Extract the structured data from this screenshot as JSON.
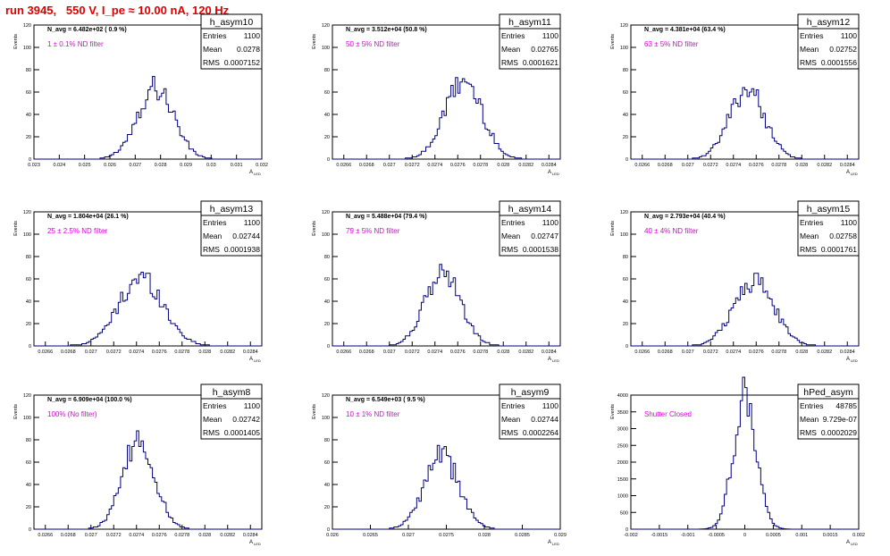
{
  "header": {
    "run_title": "run 3945,   550 V, I_pe ≈ 10.00 nA, 120 Hz"
  },
  "axis_labels": {
    "y": "Events",
    "x": "A",
    "x_sub": "LED"
  },
  "stats_labels": {
    "entries": "Entries",
    "mean": "Mean",
    "rms": "RMS"
  },
  "chart_data": [
    {
      "type": "bar",
      "hist_name": "h_asym10",
      "navg_text": "N_avg = 6.482e+02 ( 0.9 %)",
      "filter_text": "1 ± 0.1% ND filter",
      "entries": "1100",
      "mean": "0.0278",
      "rms": "0.0007152",
      "xlim": [
        0.023,
        0.032
      ],
      "ylim": [
        0,
        120
      ],
      "x_ticks": [
        "0.023",
        "0.024",
        "0.025",
        "0.026",
        "0.027",
        "0.028",
        "0.029",
        "0.03",
        "0.031",
        "0.032"
      ],
      "y_ticks": [
        "0",
        "20",
        "40",
        "60",
        "80",
        "100",
        "120"
      ],
      "mean_value": 0.0278,
      "rms_value": 0.0007152,
      "peak": 65
    },
    {
      "type": "bar",
      "hist_name": "h_asym11",
      "navg_text": "N_avg = 3.512e+04 (50.8 %)",
      "filter_text": "50 ± 5% ND filter",
      "entries": "1100",
      "mean": "0.02765",
      "rms": "0.0001621",
      "xlim": [
        0.0265,
        0.0285
      ],
      "ylim": [
        0,
        120
      ],
      "x_ticks": [
        "0.0266",
        "0.0268",
        "0.027",
        "0.0272",
        "0.0274",
        "0.0276",
        "0.0278",
        "0.028",
        "0.0282",
        "0.0284"
      ],
      "y_ticks": [
        "0",
        "20",
        "40",
        "60",
        "80",
        "100",
        "120"
      ],
      "mean_value": 0.02765,
      "rms_value": 0.0001621,
      "peak": 70
    },
    {
      "type": "bar",
      "hist_name": "h_asym12",
      "navg_text": "N_avg = 4.381e+04 (63.4 %)",
      "filter_text": "63 ± 5% ND filter",
      "entries": "1100",
      "mean": "0.02752",
      "rms": "0.0001556",
      "xlim": [
        0.0265,
        0.0285
      ],
      "ylim": [
        0,
        120
      ],
      "x_ticks": [
        "0.0266",
        "0.0268",
        "0.027",
        "0.0272",
        "0.0274",
        "0.0276",
        "0.0278",
        "0.028",
        "0.0282",
        "0.0284"
      ],
      "y_ticks": [
        "0",
        "20",
        "40",
        "60",
        "80",
        "100",
        "120"
      ],
      "mean_value": 0.02752,
      "rms_value": 0.0001556,
      "peak": 63
    },
    {
      "type": "bar",
      "hist_name": "h_asym13",
      "navg_text": "N_avg = 1.804e+04 (26.1 %)",
      "filter_text": "25 ± 2.5% ND filter",
      "entries": "1100",
      "mean": "0.02744",
      "rms": "0.0001938",
      "xlim": [
        0.0265,
        0.0285
      ],
      "ylim": [
        0,
        120
      ],
      "x_ticks": [
        "0.0266",
        "0.0268",
        "0.027",
        "0.0272",
        "0.0274",
        "0.0276",
        "0.0278",
        "0.028",
        "0.0282",
        "0.0284"
      ],
      "y_ticks": [
        "0",
        "20",
        "40",
        "60",
        "80",
        "100",
        "120"
      ],
      "mean_value": 0.02744,
      "rms_value": 0.0001938,
      "peak": 61
    },
    {
      "type": "bar",
      "hist_name": "h_asym14",
      "navg_text": "N_avg = 5.488e+04 (79.4 %)",
      "filter_text": "79 ± 5% ND filter",
      "entries": "1100",
      "mean": "0.02747",
      "rms": "0.0001538",
      "xlim": [
        0.0265,
        0.0285
      ],
      "ylim": [
        0,
        120
      ],
      "x_ticks": [
        "0.0266",
        "0.0268",
        "0.027",
        "0.0272",
        "0.0274",
        "0.0276",
        "0.0278",
        "0.028",
        "0.0282",
        "0.0284"
      ],
      "y_ticks": [
        "0",
        "20",
        "40",
        "60",
        "80",
        "100",
        "120"
      ],
      "mean_value": 0.02747,
      "rms_value": 0.0001538,
      "peak": 66
    },
    {
      "type": "bar",
      "hist_name": "h_asym15",
      "navg_text": "N_avg = 2.793e+04 (40.4 %)",
      "filter_text": "40 ± 4% ND filter",
      "entries": "1100",
      "mean": "0.02758",
      "rms": "0.0001761",
      "xlim": [
        0.0265,
        0.0285
      ],
      "ylim": [
        0,
        120
      ],
      "x_ticks": [
        "0.0266",
        "0.0268",
        "0.027",
        "0.0272",
        "0.0274",
        "0.0276",
        "0.0278",
        "0.028",
        "0.0282",
        "0.0284"
      ],
      "y_ticks": [
        "0",
        "20",
        "40",
        "60",
        "80",
        "100",
        "120"
      ],
      "mean_value": 0.02758,
      "rms_value": 0.0001761,
      "peak": 58
    },
    {
      "type": "bar",
      "hist_name": "h_asym8",
      "navg_text": "N_avg = 6.909e+04 (100.0 %)",
      "filter_text": "100% (No filter)",
      "entries": "1100",
      "mean": "0.02742",
      "rms": "0.0001405",
      "xlim": [
        0.0265,
        0.0285
      ],
      "ylim": [
        0,
        120
      ],
      "x_ticks": [
        "0.0266",
        "0.0268",
        "0.027",
        "0.0272",
        "0.0274",
        "0.0276",
        "0.0278",
        "0.028",
        "0.0282",
        "0.0284"
      ],
      "y_ticks": [
        "0",
        "20",
        "40",
        "60",
        "80",
        "100",
        "120"
      ],
      "mean_value": 0.02742,
      "rms_value": 0.0001405,
      "peak": 78
    },
    {
      "type": "bar",
      "hist_name": "h_asym9",
      "navg_text": "N_avg = 6.549e+03 ( 9.5 %)",
      "filter_text": "10 ± 1% ND filter",
      "entries": "1100",
      "mean": "0.02744",
      "rms": "0.0002264",
      "xlim": [
        0.026,
        0.029
      ],
      "ylim": [
        0,
        120
      ],
      "x_ticks": [
        "0.026",
        "0.0265",
        "0.027",
        "0.0275",
        "0.028",
        "0.0285",
        "0.029"
      ],
      "y_ticks": [
        "0",
        "20",
        "40",
        "60",
        "80",
        "100",
        "120"
      ],
      "mean_value": 0.02744,
      "rms_value": 0.0002264,
      "peak": 65
    },
    {
      "type": "bar",
      "hist_name": "hPed_asym",
      "navg_text": "",
      "filter_text": "Shutter Closed",
      "entries": "48785",
      "mean": "9.729e-07",
      "rms": "0.0002029",
      "xlim": [
        -0.002,
        0.002
      ],
      "ylim": [
        0,
        4000
      ],
      "x_ticks": [
        "-0.002",
        "-0.0015",
        "-0.001",
        "-0.0005",
        "0",
        "0.0005",
        "0.001",
        "0.0015",
        "0.002"
      ],
      "y_ticks": [
        "0",
        "500",
        "1000",
        "1500",
        "2000",
        "2500",
        "3000",
        "3500",
        "4000"
      ],
      "mean_value": 9.729e-07,
      "rms_value": 0.0002029,
      "peak": 3900
    }
  ],
  "colors": {
    "title": "#e00000",
    "filter_text": "#e000e0",
    "histogram": "#000080",
    "axis": "#000000"
  }
}
